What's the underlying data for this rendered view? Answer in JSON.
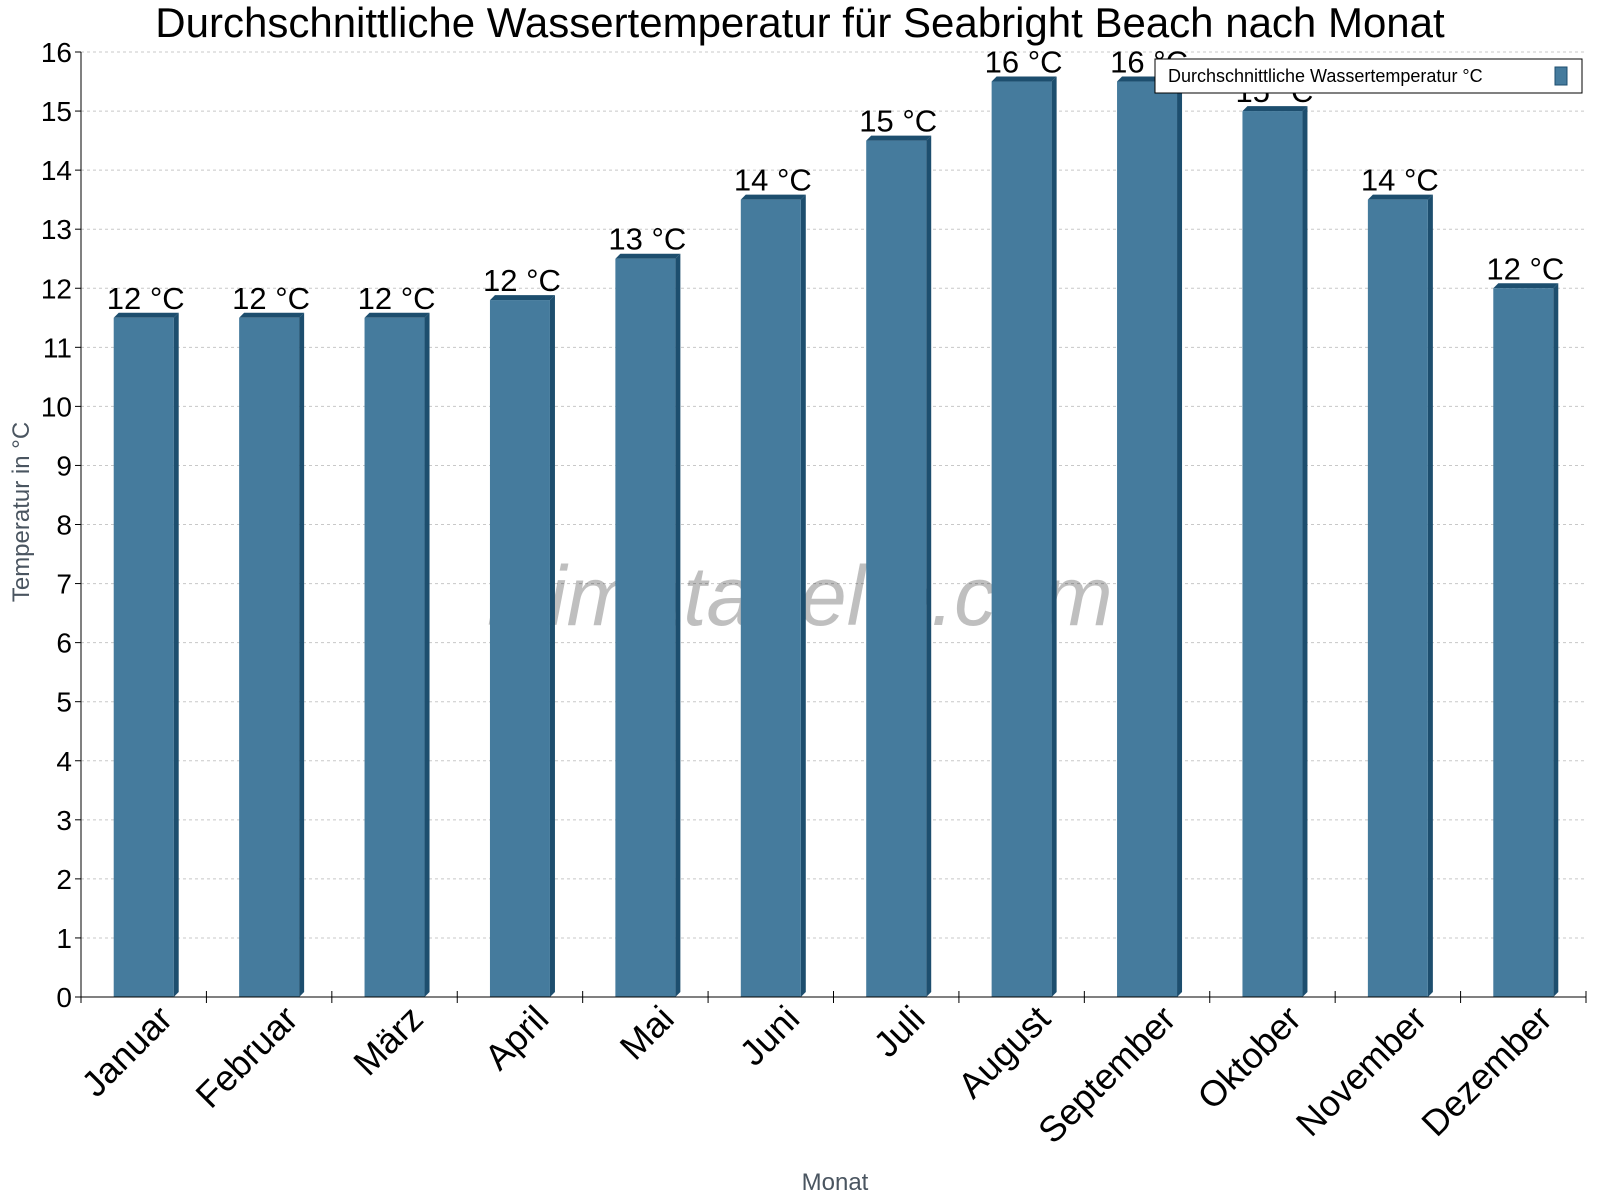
{
  "chart_data": {
    "type": "bar",
    "title": "Durchschnittliche Wassertemperatur für Seabright Beach nach Monat",
    "xlabel": "Monat",
    "ylabel": "Temperatur in °C",
    "categories": [
      "Januar",
      "Februar",
      "März",
      "April",
      "Mai",
      "Juni",
      "Juli",
      "August",
      "September",
      "Oktober",
      "November",
      "Dezember"
    ],
    "series": [
      {
        "name": "Durchschnittliche Wassertemperatur °C",
        "values": [
          11.5,
          11.5,
          11.5,
          11.8,
          12.5,
          13.5,
          14.5,
          15.5,
          15.5,
          15.0,
          13.5,
          12.0
        ],
        "labels": [
          "12 °C",
          "12 °C",
          "12 °C",
          "12 °C",
          "13 °C",
          "14 °C",
          "15 °C",
          "16 °C",
          "16 °C",
          "15 °C",
          "14 °C",
          "12 °C"
        ]
      }
    ],
    "ylim": [
      0,
      16
    ],
    "yticks": [
      "0",
      "1",
      "2",
      "3",
      "4",
      "5",
      "6",
      "7",
      "8",
      "9",
      "10",
      "11",
      "12",
      "13",
      "14",
      "15",
      "16"
    ],
    "grid": true,
    "legend_position": "top-right",
    "colors": {
      "bar": "#457b9d",
      "bar_dark": "#1d4e6e"
    },
    "watermark": "klimatabelle.com"
  }
}
